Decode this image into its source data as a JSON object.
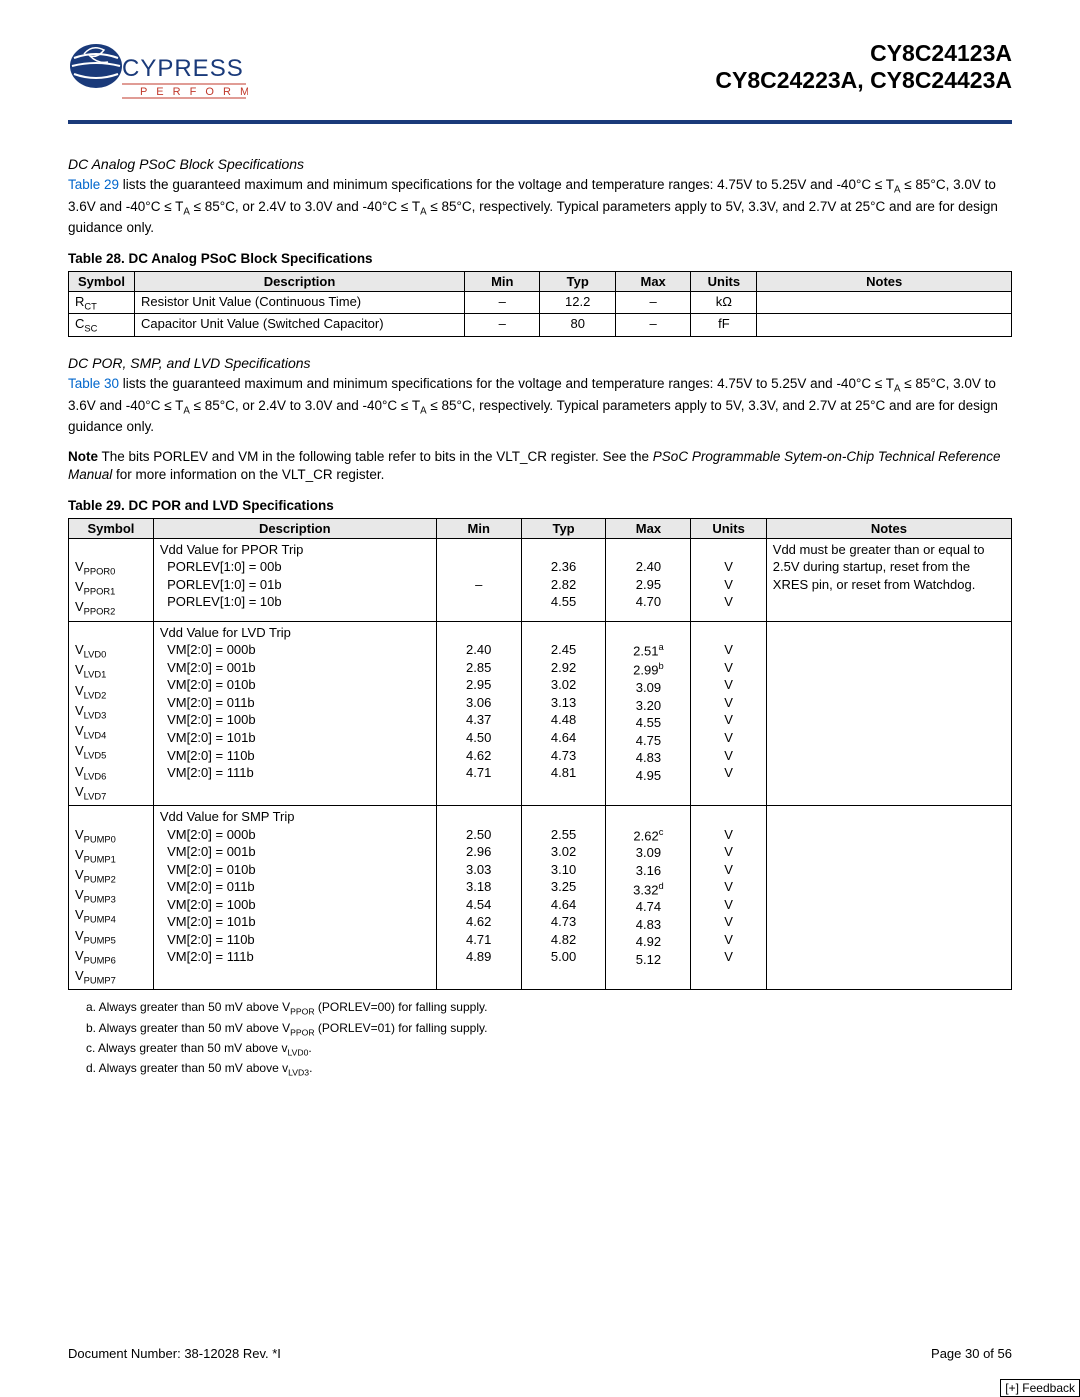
{
  "header": {
    "chip1": "CY8C24123A",
    "chip2": "CY8C24223A, CY8C24423A",
    "logo_text_top": "CYPRESS",
    "logo_text_bottom": "P E R F O R M",
    "logo_bg": "#ffffff",
    "rule_color": "#1a3a7a"
  },
  "sectionA": {
    "title": "DC Analog PSoC Block Specifications",
    "link": "Table 29",
    "para_after_link": " lists the guaranteed maximum and minimum specifications for the voltage and temperature ranges: 4.75V to 5.25V and -40°C ≤ T",
    "para_sub1": "A",
    "para_cont1": " ≤ 85°C, 3.0V to 3.6V and -40°C ≤ T",
    "para_sub2": "A",
    "para_cont2": " ≤ 85°C, or 2.4V to 3.0V and -40°C ≤ T",
    "para_sub3": "A",
    "para_cont3": " ≤ 85°C, respectively. Typical parameters apply to 5V, 3.3V, and 2.7V at 25°C and are for design guidance only."
  },
  "table28": {
    "caption": "Table 28.  DC Analog PSoC Block Specifications",
    "headers": [
      "Symbol",
      "Description",
      "Min",
      "Typ",
      "Max",
      "Units",
      "Notes"
    ],
    "col_widths": [
      "7%",
      "35%",
      "8%",
      "8%",
      "8%",
      "7%",
      "27%"
    ],
    "rows": [
      {
        "sym_base": "R",
        "sym_sub": "CT",
        "desc": "Resistor Unit Value (Continuous Time)",
        "min": "–",
        "typ": "12.2",
        "max": "–",
        "units": "kΩ",
        "notes": ""
      },
      {
        "sym_base": "C",
        "sym_sub": "SC",
        "desc": "Capacitor Unit Value (Switched Capacitor)",
        "min": "–",
        "typ": "80",
        "max": "–",
        "units": "fF",
        "notes": ""
      }
    ]
  },
  "sectionB": {
    "title": "DC POR, SMP, and LVD Specifications",
    "link": "Table 30",
    "para_after_link": " lists the guaranteed maximum and minimum specifications for the voltage and temperature ranges: 4.75V to 5.25V and -40°C ≤ T",
    "para_sub1": "A",
    "para_cont1": " ≤ 85°C, 3.0V to 3.6V and -40°C ≤ T",
    "para_sub2": "A",
    "para_cont2": " ≤ 85°C, or 2.4V to 3.0V and -40°C ≤ T",
    "para_sub3": "A",
    "para_cont3": " ≤ 85°C, respectively. Typical parameters apply to 5V, 3.3V, and 2.7V at 25°C and are for design guidance only.",
    "note_prefix": "Note",
    "note_body1": "  The bits PORLEV and VM in the following table refer to bits in the VLT_CR register. See the ",
    "note_italic": "PSoC Programmable Sytem-on-Chip Technical Reference Manual",
    "note_body2": " for more information on the VLT_CR register."
  },
  "table29": {
    "caption": "Table 29.  DC POR and LVD Specifications",
    "headers": [
      "Symbol",
      "Description",
      "Min",
      "Typ",
      "Max",
      "Units",
      "Notes"
    ],
    "col_widths": [
      "9%",
      "30%",
      "9%",
      "9%",
      "9%",
      "8%",
      "26%"
    ],
    "group1": {
      "symbols": [
        {
          "b": "V",
          "s": "PPOR0"
        },
        {
          "b": "V",
          "s": "PPOR1"
        },
        {
          "b": "V",
          "s": "PPOR2"
        }
      ],
      "desc_title": "Vdd Value for PPOR Trip",
      "desc_lines": [
        "PORLEV[1:0] = 00b",
        "PORLEV[1:0] = 01b",
        "PORLEV[1:0] = 10b"
      ],
      "min": [
        "",
        "–",
        ""
      ],
      "typ": [
        "2.36",
        "2.82",
        "4.55"
      ],
      "max": [
        "2.40",
        "2.95",
        "4.70"
      ],
      "max_sup": [
        "",
        "",
        ""
      ],
      "units": [
        "V",
        "V",
        "V"
      ],
      "notes": "Vdd must be greater than or equal to 2.5V during startup, reset from the XRES pin, or reset from Watchdog."
    },
    "group2": {
      "symbols": [
        {
          "b": "V",
          "s": "LVD0"
        },
        {
          "b": "V",
          "s": "LVD1"
        },
        {
          "b": "V",
          "s": "LVD2"
        },
        {
          "b": "V",
          "s": "LVD3"
        },
        {
          "b": "V",
          "s": "LVD4"
        },
        {
          "b": "V",
          "s": "LVD5"
        },
        {
          "b": "V",
          "s": "LVD6"
        },
        {
          "b": "V",
          "s": "LVD7"
        }
      ],
      "desc_title": "Vdd Value for LVD Trip",
      "desc_lines": [
        "VM[2:0] = 000b",
        "VM[2:0] = 001b",
        "VM[2:0] = 010b",
        "VM[2:0] = 011b",
        "VM[2:0] = 100b",
        "VM[2:0] = 101b",
        "VM[2:0] = 110b",
        "VM[2:0] = 111b"
      ],
      "min": [
        "2.40",
        "2.85",
        "2.95",
        "3.06",
        "4.37",
        "4.50",
        "4.62",
        "4.71"
      ],
      "typ": [
        "2.45",
        "2.92",
        "3.02",
        "3.13",
        "4.48",
        "4.64",
        "4.73",
        "4.81"
      ],
      "max": [
        "2.51",
        "2.99",
        "3.09",
        "3.20",
        "4.55",
        "4.75",
        "4.83",
        "4.95"
      ],
      "max_sup": [
        "a",
        "b",
        "",
        "",
        "",
        "",
        "",
        ""
      ],
      "units": [
        "V",
        "V",
        "V",
        "V",
        "V",
        "V",
        "V",
        "V"
      ],
      "notes": ""
    },
    "group3": {
      "symbols": [
        {
          "b": "V",
          "s": "PUMP0"
        },
        {
          "b": "V",
          "s": "PUMP1"
        },
        {
          "b": "V",
          "s": "PUMP2"
        },
        {
          "b": "V",
          "s": "PUMP3"
        },
        {
          "b": "V",
          "s": "PUMP4"
        },
        {
          "b": "V",
          "s": "PUMP5"
        },
        {
          "b": "V",
          "s": "PUMP6"
        },
        {
          "b": "V",
          "s": "PUMP7"
        }
      ],
      "desc_title": "Vdd Value for SMP Trip",
      "desc_lines": [
        "VM[2:0] = 000b",
        "VM[2:0] = 001b",
        "VM[2:0] = 010b",
        "VM[2:0] = 011b",
        "VM[2:0] = 100b",
        "VM[2:0] = 101b",
        "VM[2:0] = 110b",
        "VM[2:0] = 111b"
      ],
      "min": [
        "2.50",
        "2.96",
        "3.03",
        "3.18",
        "4.54",
        "4.62",
        "4.71",
        "4.89"
      ],
      "typ": [
        "2.55",
        "3.02",
        "3.10",
        "3.25",
        "4.64",
        "4.73",
        "4.82",
        "5.00"
      ],
      "max": [
        "2.62",
        "3.09",
        "3.16",
        "3.32",
        "4.74",
        "4.83",
        "4.92",
        "5.12"
      ],
      "max_sup": [
        "c",
        "",
        "",
        "d",
        "",
        "",
        "",
        ""
      ],
      "units": [
        "V",
        "V",
        "V",
        "V",
        "V",
        "V",
        "V",
        "V"
      ],
      "notes": ""
    }
  },
  "footnotes": {
    "a_pre": "a.  Always greater than 50 mV above V",
    "a_sub": "PPOR",
    "a_post": " (PORLEV=00) for falling supply.",
    "b_pre": "b.  Always greater than 50 mV above V",
    "b_sub": "PPOR",
    "b_post": " (PORLEV=01) for falling supply.",
    "c_pre": "c.  Always greater than 50 mV above v",
    "c_sub": "LVD0",
    "c_post": ".",
    "d_pre": "d.  Always greater than 50 mV above v",
    "d_sub": "LVD3",
    "d_post": "."
  },
  "footer": {
    "docnum": "Document Number: 38-12028  Rev. *I",
    "page": "Page 30 of 56",
    "feedback": "[+] Feedback"
  }
}
